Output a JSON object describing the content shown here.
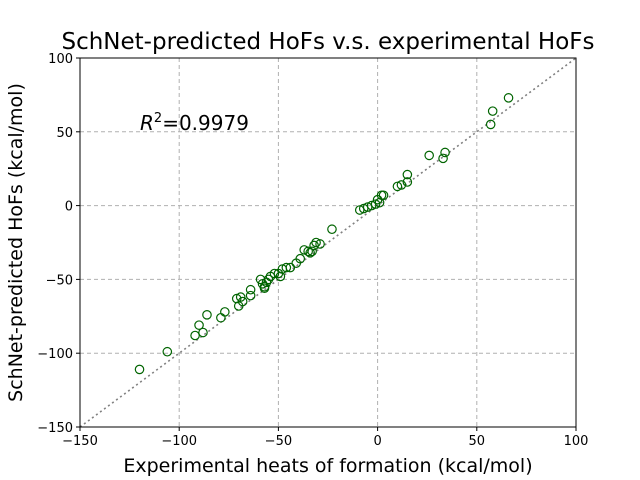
{
  "chart_data": {
    "type": "scatter",
    "title": "SchNet-predicted HoFs v.s. experimental HoFs",
    "xlabel": "Experimental heats of formation (kcal/mol)",
    "ylabel": "SchNet-predicted HoFs (kcal/mol)",
    "xlim": [
      -150,
      100
    ],
    "ylim": [
      -150,
      100
    ],
    "xticks": [
      -150,
      -100,
      -50,
      0,
      50,
      100
    ],
    "yticks": [
      -150,
      -100,
      -50,
      0,
      50,
      100
    ],
    "xtick_labels": [
      "−150",
      "−100",
      "−50",
      "0",
      "50",
      "100"
    ],
    "ytick_labels": [
      "−150",
      "−100",
      "−50",
      "0",
      "50",
      "100"
    ],
    "grid": true,
    "reference_line": "y = x",
    "annotation": {
      "base": "R",
      "sup": "2",
      "rest": "=0.9979"
    },
    "series": [
      {
        "color": "#006400",
        "marker": "open-circle",
        "points": [
          [
            -120,
            -111
          ],
          [
            -106,
            -99
          ],
          [
            -92,
            -88
          ],
          [
            -90,
            -81
          ],
          [
            -88,
            -86
          ],
          [
            -86,
            -74
          ],
          [
            -79,
            -76
          ],
          [
            -77,
            -72
          ],
          [
            -71,
            -63
          ],
          [
            -70,
            -68
          ],
          [
            -69,
            -62
          ],
          [
            -68,
            -65
          ],
          [
            -64,
            -57
          ],
          [
            -64,
            -61
          ],
          [
            -59,
            -50
          ],
          [
            -58,
            -53
          ],
          [
            -57,
            -55
          ],
          [
            -57,
            -56
          ],
          [
            -56,
            -52
          ],
          [
            -55,
            -50
          ],
          [
            -54,
            -48
          ],
          [
            -52,
            -46
          ],
          [
            -50,
            -46
          ],
          [
            -49,
            -48
          ],
          [
            -48,
            -43
          ],
          [
            -46,
            -42
          ],
          [
            -44,
            -42
          ],
          [
            -41,
            -39
          ],
          [
            -39,
            -36
          ],
          [
            -37,
            -30
          ],
          [
            -35,
            -31
          ],
          [
            -34,
            -32
          ],
          [
            -33,
            -31
          ],
          [
            -32,
            -27
          ],
          [
            -31,
            -25
          ],
          [
            -29,
            -26
          ],
          [
            -23,
            -16
          ],
          [
            -9,
            -3
          ],
          [
            -7,
            -2
          ],
          [
            -5,
            -1
          ],
          [
            -3,
            0
          ],
          [
            -1,
            1
          ],
          [
            0,
            4
          ],
          [
            1,
            2
          ],
          [
            2,
            7
          ],
          [
            3,
            7
          ],
          [
            10,
            13
          ],
          [
            12,
            14
          ],
          [
            15,
            16
          ],
          [
            15,
            21
          ],
          [
            26,
            34
          ],
          [
            33,
            32
          ],
          [
            34,
            36
          ],
          [
            57,
            55
          ],
          [
            58,
            64
          ],
          [
            66,
            73
          ]
        ]
      }
    ]
  }
}
